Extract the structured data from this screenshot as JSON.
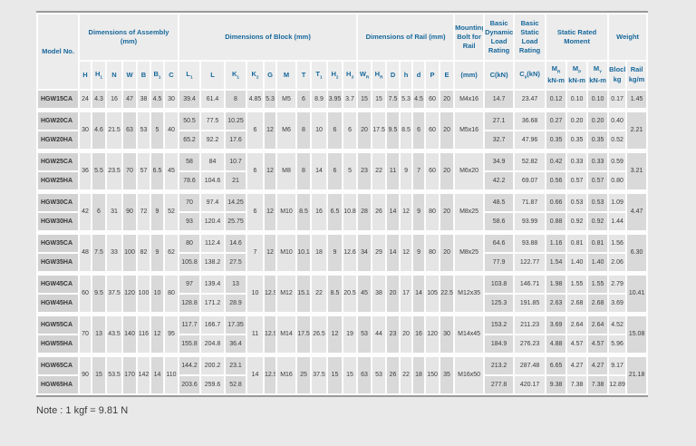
{
  "note": "Note : 1 kgf = 9.81 N",
  "table": {
    "header": {
      "model_label": "Model No.",
      "groups": {
        "assembly": "Dimensions of Assembly (mm)",
        "block": "Dimensions of Block (mm)",
        "rail": "Dimensions of Rail (mm)",
        "bolt": "Mounting Bolt for Rail",
        "dynamic": "Basic Dynamic Load Rating",
        "static": "Basic Static Load Rating",
        "moment": "Static Rated Moment",
        "weight": "Weight"
      },
      "assembly_cols": [
        "H",
        "H_1",
        "N",
        "W",
        "B",
        "B_1",
        "C"
      ],
      "block_cols": [
        "L_1",
        "L",
        "K_1",
        "K_2",
        "G",
        "M",
        "T",
        "T_1",
        "H_2",
        "H_3"
      ],
      "rail_cols": [
        "W_R",
        "H_R",
        "D",
        "h",
        "d",
        "P",
        "E"
      ],
      "bolt_unit": "(mm)",
      "dynamic_unit": "C(kN)",
      "static_unit": "C_0_(kN)",
      "moment_cols": [
        [
          "M_R",
          "kN-m"
        ],
        [
          "M_P",
          "kN-m"
        ],
        [
          "M_Y",
          "kN-m"
        ]
      ],
      "weight_cols": [
        [
          "Block",
          "kg"
        ],
        [
          "Rail",
          "kg/m"
        ]
      ]
    },
    "groups": [
      {
        "assembly": [
          "24",
          "4.3",
          "16",
          "47",
          "38",
          "4.5",
          "30"
        ],
        "block_shared": [
          "4.85",
          "5.3",
          "M5",
          "6",
          "8.9",
          "3.95",
          "3.7"
        ],
        "rail": [
          "15",
          "15",
          "7.5",
          "5.3",
          "4.5",
          "60",
          "20"
        ],
        "bolt": "M4x16",
        "rail_weight": "1.45",
        "rows": [
          {
            "model": "HGW15CA",
            "block": [
              "39.4",
              "61.4",
              "8"
            ],
            "loads": [
              "14.7",
              "23.47",
              "0.12",
              "0.10",
              "0.10",
              "0.17"
            ]
          }
        ]
      },
      {
        "assembly": [
          "30",
          "4.6",
          "21.5",
          "63",
          "53",
          "5",
          "40"
        ],
        "block_shared": [
          "6",
          "12",
          "M6",
          "8",
          "10",
          "6",
          "6"
        ],
        "rail": [
          "20",
          "17.5",
          "9.5",
          "8.5",
          "6",
          "60",
          "20"
        ],
        "bolt": "M5x16",
        "rail_weight": "2.21",
        "rows": [
          {
            "model": "HGW20CA",
            "block": [
              "50.5",
              "77.5",
              "10.25"
            ],
            "loads": [
              "27.1",
              "36.68",
              "0.27",
              "0.20",
              "0.20",
              "0.40"
            ]
          },
          {
            "model": "HGW20HA",
            "block": [
              "65.2",
              "92.2",
              "17.6"
            ],
            "loads": [
              "32.7",
              "47.96",
              "0.35",
              "0.35",
              "0.35",
              "0.52"
            ]
          }
        ]
      },
      {
        "assembly": [
          "36",
          "5.5",
          "23.5",
          "70",
          "57",
          "6.5",
          "45"
        ],
        "block_shared": [
          "6",
          "12",
          "M8",
          "8",
          "14",
          "6",
          "5"
        ],
        "rail": [
          "23",
          "22",
          "11",
          "9",
          "7",
          "60",
          "20"
        ],
        "bolt": "M6x20",
        "rail_weight": "3.21",
        "rows": [
          {
            "model": "HGW25CA",
            "block": [
              "58",
              "84",
              "10.7"
            ],
            "loads": [
              "34.9",
              "52.82",
              "0.42",
              "0.33",
              "0.33",
              "0.59"
            ]
          },
          {
            "model": "HGW25HA",
            "block": [
              "78.6",
              "104.6",
              "21"
            ],
            "loads": [
              "42.2",
              "69.07",
              "0.56",
              "0.57",
              "0.57",
              "0.80"
            ]
          }
        ]
      },
      {
        "assembly": [
          "42",
          "6",
          "31",
          "90",
          "72",
          "9",
          "52"
        ],
        "block_shared": [
          "6",
          "12",
          "M10",
          "8.5",
          "16",
          "6.5",
          "10.8"
        ],
        "rail": [
          "28",
          "26",
          "14",
          "12",
          "9",
          "80",
          "20"
        ],
        "bolt": "M8x25",
        "rail_weight": "4.47",
        "rows": [
          {
            "model": "HGW30CA",
            "block": [
              "70",
              "97.4",
              "14.25"
            ],
            "loads": [
              "48.5",
              "71.87",
              "0.66",
              "0.53",
              "0.53",
              "1.09"
            ]
          },
          {
            "model": "HGW30HA",
            "block": [
              "93",
              "120.4",
              "25.75"
            ],
            "loads": [
              "58.6",
              "93.99",
              "0.88",
              "0.92",
              "0.92",
              "1.44"
            ]
          }
        ]
      },
      {
        "assembly": [
          "48",
          "7.5",
          "33",
          "100",
          "82",
          "9",
          "62"
        ],
        "block_shared": [
          "7",
          "12",
          "M10",
          "10.1",
          "18",
          "9",
          "12.6"
        ],
        "rail": [
          "34",
          "29",
          "14",
          "12",
          "9",
          "80",
          "20"
        ],
        "bolt": "M8x25",
        "rail_weight": "6.30",
        "rows": [
          {
            "model": "HGW35CA",
            "block": [
              "80",
              "112.4",
              "14.6"
            ],
            "loads": [
              "64.6",
              "93.88",
              "1.16",
              "0.81",
              "0.81",
              "1.56"
            ]
          },
          {
            "model": "HGW35HA",
            "block": [
              "105.8",
              "138.2",
              "27.5"
            ],
            "loads": [
              "77.9",
              "122.77",
              "1.54",
              "1.40",
              "1.40",
              "2.06"
            ]
          }
        ]
      },
      {
        "assembly": [
          "60",
          "9.5",
          "37.5",
          "120",
          "100",
          "10",
          "80"
        ],
        "block_shared": [
          "10",
          "12.9",
          "M12",
          "15.1",
          "22",
          "8.5",
          "20.5"
        ],
        "rail": [
          "45",
          "38",
          "20",
          "17",
          "14",
          "105",
          "22.5"
        ],
        "bolt": "M12x35",
        "rail_weight": "10.41",
        "rows": [
          {
            "model": "HGW45CA",
            "block": [
              "97",
              "139.4",
              "13"
            ],
            "loads": [
              "103.8",
              "146.71",
              "1.98",
              "1.55",
              "1.55",
              "2.79"
            ]
          },
          {
            "model": "HGW45HA",
            "block": [
              "128.8",
              "171.2",
              "28.9"
            ],
            "loads": [
              "125.3",
              "191.85",
              "2.63",
              "2.68",
              "2.68",
              "3.69"
            ]
          }
        ]
      },
      {
        "assembly": [
          "70",
          "13",
          "43.5",
          "140",
          "116",
          "12",
          "95"
        ],
        "block_shared": [
          "11",
          "12.9",
          "M14",
          "17.5",
          "26.5",
          "12",
          "19"
        ],
        "rail": [
          "53",
          "44",
          "23",
          "20",
          "16",
          "120",
          "30"
        ],
        "bolt": "M14x45",
        "rail_weight": "15.08",
        "rows": [
          {
            "model": "HGW55CA",
            "block": [
              "117.7",
              "166.7",
              "17.35"
            ],
            "loads": [
              "153.2",
              "211.23",
              "3.69",
              "2.64",
              "2.64",
              "4.52"
            ]
          },
          {
            "model": "HGW55HA",
            "block": [
              "155.8",
              "204.8",
              "36.4"
            ],
            "loads": [
              "184.9",
              "276.23",
              "4.88",
              "4.57",
              "4.57",
              "5.96"
            ]
          }
        ]
      },
      {
        "assembly": [
          "90",
          "15",
          "53.5",
          "170",
          "142",
          "14",
          "110"
        ],
        "block_shared": [
          "14",
          "12.9",
          "M16",
          "25",
          "37.5",
          "15",
          "15"
        ],
        "rail": [
          "63",
          "53",
          "26",
          "22",
          "18",
          "150",
          "35"
        ],
        "bolt": "M16x50",
        "rail_weight": "21.18",
        "rows": [
          {
            "model": "HGW65CA",
            "block": [
              "144.2",
              "200.2",
              "23.1"
            ],
            "loads": [
              "213.2",
              "287.48",
              "6.65",
              "4.27",
              "4.27",
              "9.17"
            ]
          },
          {
            "model": "HGW65HA",
            "block": [
              "203.6",
              "259.6",
              "52.8"
            ],
            "loads": [
              "277.8",
              "420.17",
              "9.38",
              "7.38",
              "7.38",
              "12.89"
            ]
          }
        ]
      }
    ]
  }
}
